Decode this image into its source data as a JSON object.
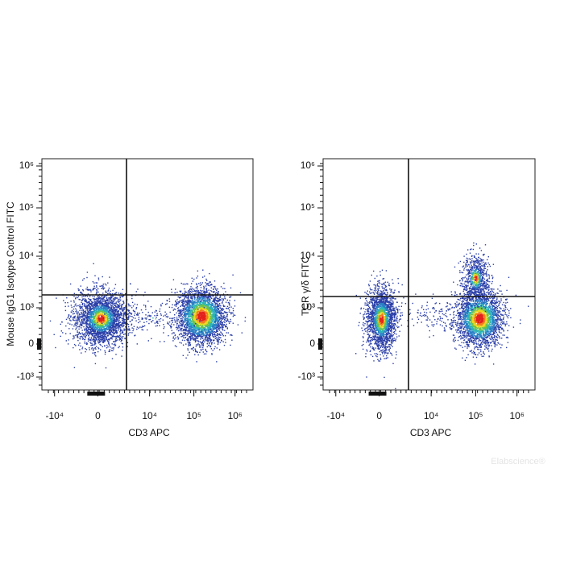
{
  "panels": [
    {
      "y_label": "Mouse IgG1 Isotype Control  FITC",
      "x_label": "CD3 APC",
      "x_ticks": [
        "-10⁴",
        "0",
        "10⁴",
        "10⁵",
        "10⁶"
      ],
      "y_ticks": [
        "10⁶",
        "10⁵",
        "10⁴",
        "10³",
        "0",
        "-10³"
      ]
    },
    {
      "y_label": "TCR γ/δ FITC",
      "x_label": "CD3 APC",
      "x_ticks": [
        "-10⁴",
        "0",
        "10⁴",
        "10⁵",
        "10⁶"
      ],
      "y_ticks": [
        "10⁶",
        "10⁵",
        "10⁴",
        "10³",
        "0",
        "-10³"
      ]
    }
  ],
  "watermark": "Elabscience®"
}
